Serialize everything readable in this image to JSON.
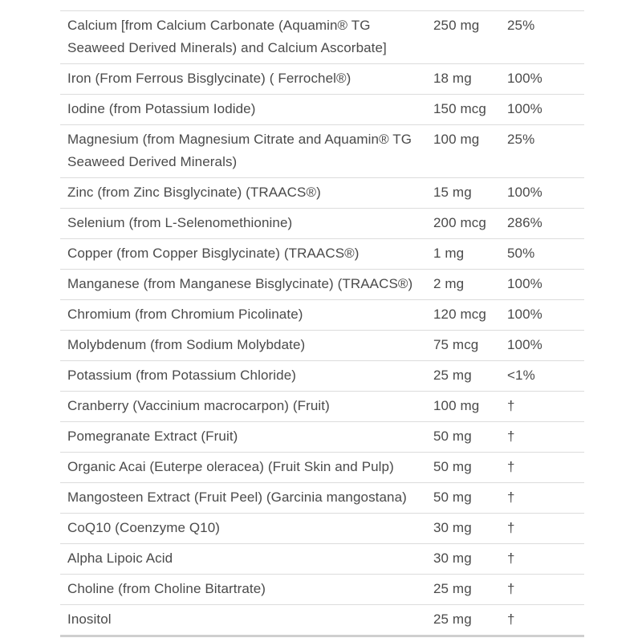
{
  "colors": {
    "background": "#ffffff",
    "text": "#4a4a4a",
    "divider": "#dcdcdc",
    "bottom_border": "#cfcfcf"
  },
  "supplement_table": {
    "rows": [
      {
        "name": "Calcium [from Calcium Carbonate (Aquamin® TG Seaweed Derived Minerals) and Calcium Ascorbate]",
        "amount": "250 mg",
        "dv": "25%"
      },
      {
        "name": "Iron (From Ferrous Bisglycinate) ( Ferrochel®)",
        "amount": "18 mg",
        "dv": "100%"
      },
      {
        "name": "Iodine (from Potassium Iodide)",
        "amount": "150 mcg",
        "dv": "100%"
      },
      {
        "name": "Magnesium (from Magnesium Citrate and Aquamin® TG Seaweed Derived Minerals)",
        "amount": "100 mg",
        "dv": "25%"
      },
      {
        "name": "Zinc (from Zinc Bisglycinate) (TRAACS®)",
        "amount": "15 mg",
        "dv": "100%"
      },
      {
        "name": "Selenium (from L-Selenomethionine)",
        "amount": "200 mcg",
        "dv": "286%"
      },
      {
        "name": "Copper (from Copper Bisglycinate) (TRAACS®)",
        "amount": "1 mg",
        "dv": "50%"
      },
      {
        "name": "Manganese (from Manganese Bisglycinate) (TRAACS®)",
        "amount": "2 mg",
        "dv": "100%"
      },
      {
        "name": "Chromium (from Chromium Picolinate)",
        "amount": "120 mcg",
        "dv": "100%"
      },
      {
        "name": "Molybdenum (from Sodium Molybdate)",
        "amount": "75 mcg",
        "dv": "100%"
      },
      {
        "name": "Potassium (from Potassium Chloride)",
        "amount": "25 mg",
        "dv": "<1%"
      },
      {
        "name": "Cranberry (Vaccinium macrocarpon) (Fruit)",
        "amount": "100 mg",
        "dv": "†"
      },
      {
        "name": "Pomegranate Extract (Fruit)",
        "amount": "50 mg",
        "dv": "†"
      },
      {
        "name": "Organic Acai (Euterpe oleracea) (Fruit Skin and Pulp)",
        "amount": "50 mg",
        "dv": "†"
      },
      {
        "name": "Mangosteen Extract (Fruit Peel) (Garcinia mangostana)",
        "amount": "50 mg",
        "dv": "†"
      },
      {
        "name": "CoQ10 (Coenzyme Q10)",
        "amount": "30 mg",
        "dv": "†"
      },
      {
        "name": "Alpha Lipoic Acid",
        "amount": "30 mg",
        "dv": "†"
      },
      {
        "name": "Choline (from Choline Bitartrate)",
        "amount": "25 mg",
        "dv": "†"
      },
      {
        "name": "Inositol",
        "amount": "25 mg",
        "dv": "†"
      }
    ]
  }
}
